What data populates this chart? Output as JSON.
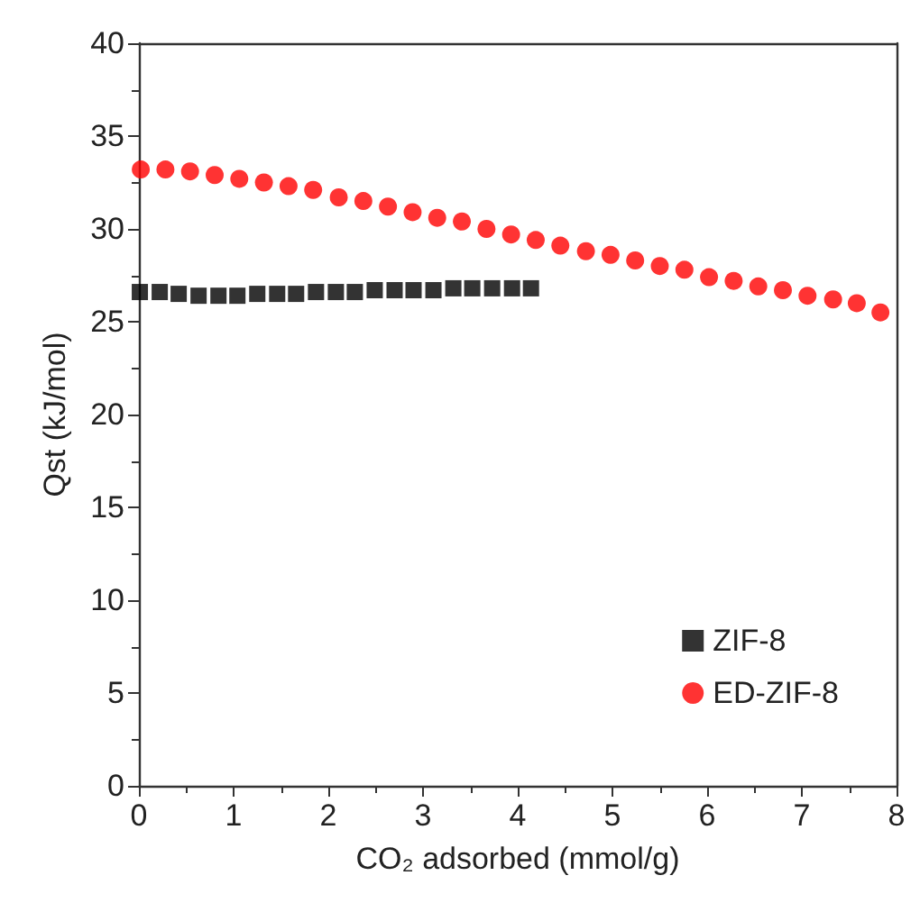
{
  "chart_data": {
    "type": "scatter",
    "xlabel": "CO₂ adsorbed (mmol/g)",
    "ylabel": "Qst (kJ/mol)",
    "xlim": [
      0,
      8
    ],
    "xticks": [
      0,
      1,
      2,
      3,
      4,
      5,
      6,
      7,
      8
    ],
    "ylim": [
      0,
      40
    ],
    "yticks": [
      0,
      5,
      10,
      15,
      20,
      25,
      30,
      35,
      40
    ],
    "grid": false,
    "legend": "bottom right",
    "series": [
      {
        "name": "ZIF-8",
        "color": "#000000",
        "marker": "square",
        "x": [
          0.01,
          0.22,
          0.42,
          0.63,
          0.84,
          1.04,
          1.25,
          1.46,
          1.66,
          1.87,
          2.08,
          2.28,
          2.49,
          2.7,
          2.9,
          3.11,
          3.32,
          3.52,
          3.73,
          3.94,
          4.14
        ],
        "values": [
          26.6,
          26.6,
          26.5,
          26.4,
          26.4,
          26.4,
          26.5,
          26.5,
          26.5,
          26.6,
          26.6,
          26.6,
          26.7,
          26.7,
          26.7,
          26.7,
          26.8,
          26.8,
          26.8,
          26.8,
          26.8
        ]
      },
      {
        "name": "ED-ZIF-8",
        "color": "#ff0000",
        "marker": "circle",
        "x": [
          0.02,
          0.28,
          0.54,
          0.8,
          1.06,
          1.32,
          1.58,
          1.84,
          2.11,
          2.37,
          2.63,
          2.89,
          3.15,
          3.41,
          3.67,
          3.93,
          4.19,
          4.45,
          4.72,
          4.98,
          5.24,
          5.5,
          5.76,
          6.02,
          6.28,
          6.54,
          6.8,
          7.06,
          7.33,
          7.58,
          7.83
        ],
        "values": [
          33.2,
          33.2,
          33.1,
          32.9,
          32.7,
          32.5,
          32.3,
          32.1,
          31.7,
          31.5,
          31.2,
          30.9,
          30.6,
          30.4,
          30.0,
          29.7,
          29.4,
          29.1,
          28.8,
          28.6,
          28.3,
          28.0,
          27.8,
          27.4,
          27.2,
          26.9,
          26.7,
          26.4,
          26.2,
          26.0,
          25.5
        ]
      }
    ]
  }
}
